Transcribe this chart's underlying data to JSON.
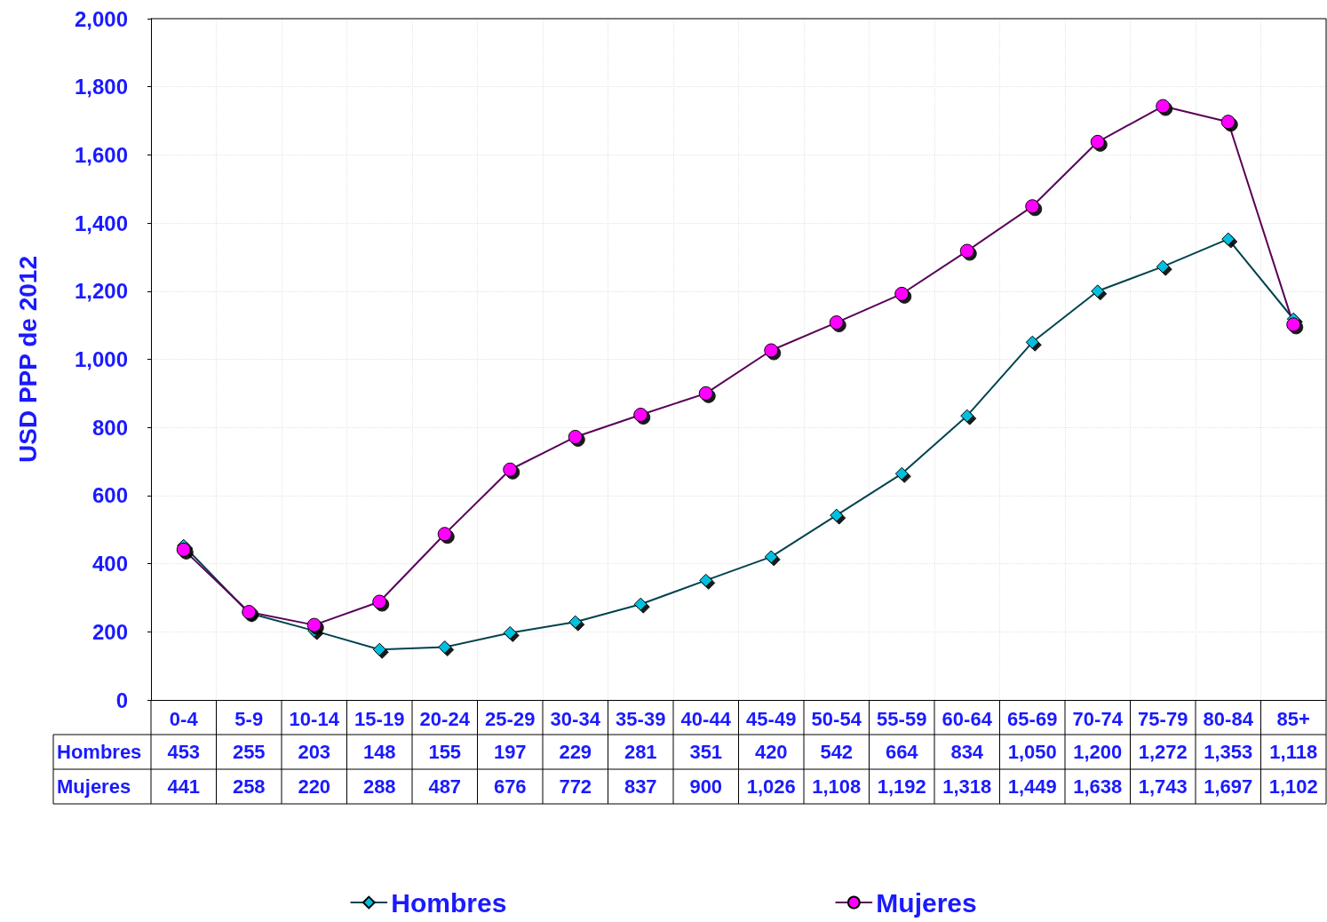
{
  "chart_data": {
    "type": "line",
    "ylabel": "USD PPP de 2012",
    "categories": [
      "0-4",
      "5-9",
      "10-14",
      "15-19",
      "20-24",
      "25-29",
      "30-34",
      "35-39",
      "40-44",
      "45-49",
      "50-54",
      "55-59",
      "60-64",
      "65-69",
      "70-74",
      "75-79",
      "80-84",
      "85+"
    ],
    "series": [
      {
        "name": "Hombres",
        "color": "#00c0e0",
        "marker": "diamond",
        "values": [
          453,
          255,
          203,
          148,
          155,
          197,
          229,
          281,
          351,
          420,
          542,
          664,
          834,
          1050,
          1200,
          1272,
          1353,
          1118
        ],
        "value_labels": [
          "453",
          "255",
          "203",
          "148",
          "155",
          "197",
          "229",
          "281",
          "351",
          "420",
          "542",
          "664",
          "834",
          "1,050",
          "1,200",
          "1,272",
          "1,353",
          "1,118"
        ]
      },
      {
        "name": "Mujeres",
        "color": "#ff00ff",
        "marker": "circle",
        "values": [
          441,
          258,
          220,
          288,
          487,
          676,
          772,
          837,
          900,
          1026,
          1108,
          1192,
          1318,
          1449,
          1638,
          1743,
          1697,
          1102
        ],
        "value_labels": [
          "441",
          "258",
          "220",
          "288",
          "487",
          "676",
          "772",
          "837",
          "900",
          "1,026",
          "1,108",
          "1,192",
          "1,318",
          "1,449",
          "1,638",
          "1,743",
          "1,697",
          "1,102"
        ]
      }
    ],
    "ylim": [
      0,
      2000
    ],
    "yticks": [
      0,
      200,
      400,
      600,
      800,
      {
        "value": 1000,
        "label": "1,000"
      },
      {
        "value": 1200,
        "label": "1,200"
      },
      {
        "value": 1400,
        "label": "1,400"
      },
      {
        "value": 1600,
        "label": "1,600"
      },
      {
        "value": 1800,
        "label": "1,800"
      },
      {
        "value": 2000,
        "label": "2,000"
      }
    ],
    "grid": true,
    "legend": "bottom",
    "line_style": "solid"
  }
}
